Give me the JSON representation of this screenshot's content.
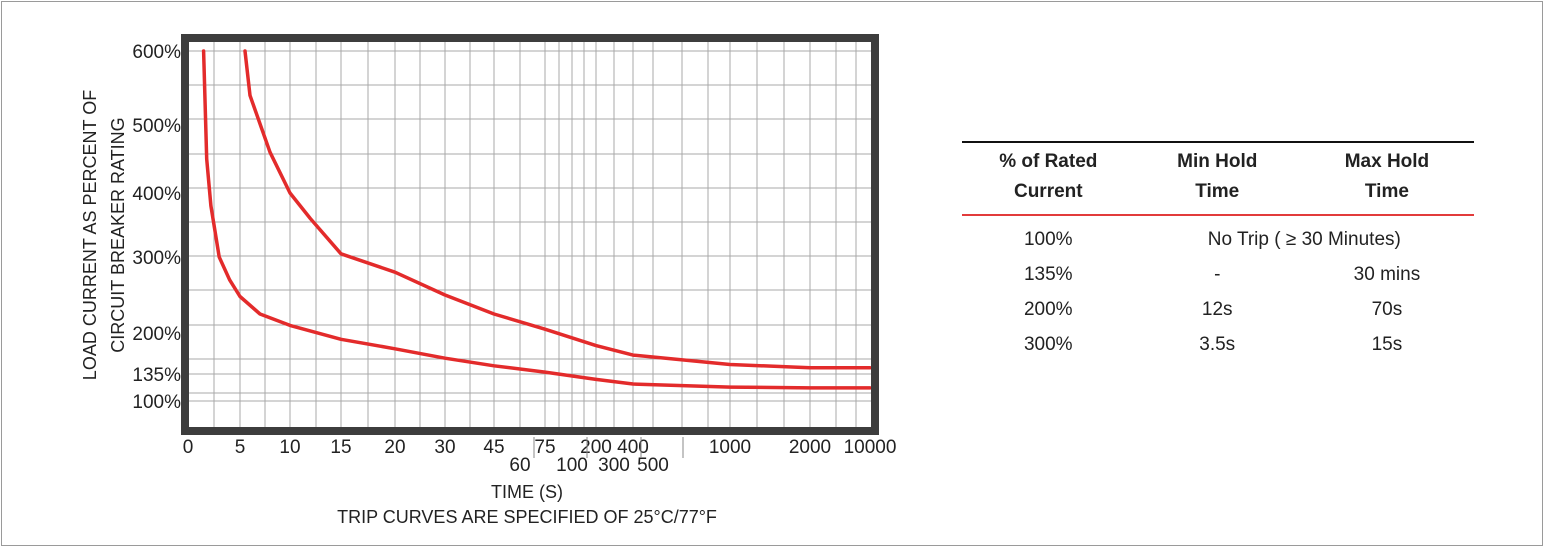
{
  "chart_data": {
    "type": "line",
    "ylabel_line1": "LOAD CURRENT AS PERCENT OF",
    "ylabel_line2": "CIRCUIT BREAKER RATING",
    "xlabel": "TIME (S)",
    "caption": "TRIP CURVES ARE SPECIFIED OF 25°C/77°F",
    "x_tick_labels": [
      "0",
      "5",
      "10",
      "15",
      "20",
      "30",
      "45",
      "60",
      "75",
      "100",
      "200",
      "300",
      "400",
      "500",
      "1000",
      "2000",
      "10000"
    ],
    "y_tick_labels": [
      "600%",
      "500%",
      "400%",
      "300%",
      "200%",
      "135%",
      "100%"
    ],
    "y_tick_values": [
      600,
      500,
      400,
      300,
      200,
      135,
      100
    ],
    "y_scale": "non-linear",
    "grid": true,
    "curve_color": "#e32b2b",
    "series": [
      {
        "points": [
          [
            1.5,
            600
          ],
          [
            1.8,
            450
          ],
          [
            2.2,
            380
          ],
          [
            3,
            300
          ],
          [
            4,
            270
          ],
          [
            5,
            248
          ],
          [
            7,
            225
          ],
          [
            10,
            210
          ],
          [
            15,
            190
          ],
          [
            20,
            175
          ],
          [
            30,
            160
          ],
          [
            45,
            148
          ],
          [
            75,
            138
          ],
          [
            200,
            128
          ],
          [
            400,
            122
          ],
          [
            1000,
            118
          ],
          [
            2000,
            117
          ],
          [
            10000,
            117
          ]
        ]
      },
      {
        "points": [
          [
            5.5,
            600
          ],
          [
            6,
            540
          ],
          [
            8,
            460
          ],
          [
            10,
            400
          ],
          [
            12,
            360
          ],
          [
            15,
            305
          ],
          [
            20,
            280
          ],
          [
            30,
            250
          ],
          [
            45,
            225
          ],
          [
            75,
            205
          ],
          [
            200,
            180
          ],
          [
            400,
            165
          ],
          [
            1000,
            150
          ],
          [
            2000,
            145
          ],
          [
            10000,
            145
          ]
        ]
      }
    ]
  },
  "table": {
    "headers": [
      {
        "line1": "% of Rated",
        "line2": "Current"
      },
      {
        "line1": "Min Hold",
        "line2": "Time"
      },
      {
        "line1": "Max Hold",
        "line2": "Time"
      }
    ],
    "row100": {
      "current": "100%",
      "merged": "No Trip ( ≥ 30 Minutes)"
    },
    "rows": [
      {
        "current": "135%",
        "min": "-",
        "max": "30 mins"
      },
      {
        "current": "200%",
        "min": "12s",
        "max": "70s"
      },
      {
        "current": "300%",
        "min": "3.5s",
        "max": "15s"
      }
    ]
  }
}
